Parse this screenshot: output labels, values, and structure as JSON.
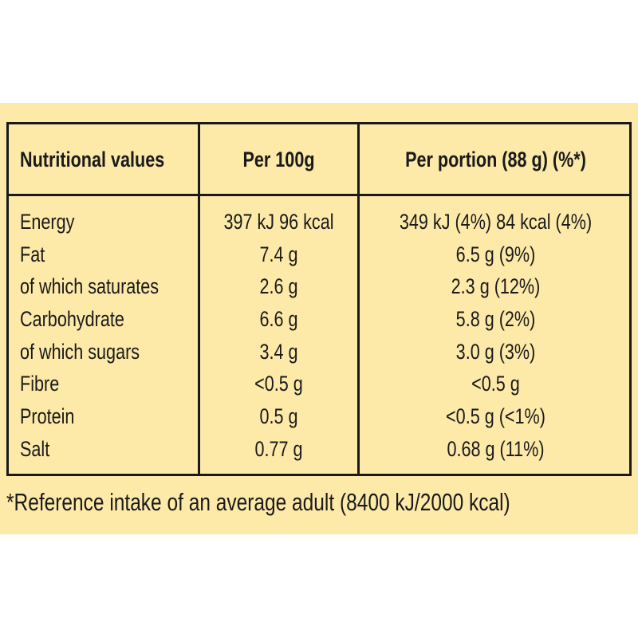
{
  "table": {
    "headers": [
      "Nutritional values",
      "Per 100g",
      "Per portion (88 g) (%*)"
    ],
    "rows": [
      [
        "Energy",
        "397 kJ 96 kcal",
        "349 kJ (4%) 84 kcal (4%)"
      ],
      [
        "Fat",
        "7.4 g",
        "6.5 g (9%)"
      ],
      [
        "of which saturates",
        "2.6 g",
        "2.3 g (12%)"
      ],
      [
        "Carbohydrate",
        "6.6 g",
        "5.8 g (2%)"
      ],
      [
        "of which sugars",
        "3.4 g",
        "3.0 g (3%)"
      ],
      [
        "Fibre",
        "<0.5 g",
        "<0.5 g"
      ],
      [
        "Protein",
        "0.5 g",
        "<0.5 g (<1%)"
      ],
      [
        "Salt",
        "0.77 g",
        "0.68 g (11%)"
      ]
    ]
  },
  "footnote": "*Reference intake of an average adult (8400 kJ/2000 kcal)",
  "colors": {
    "background": "#fde9a8",
    "text": "#1a1a1a"
  }
}
